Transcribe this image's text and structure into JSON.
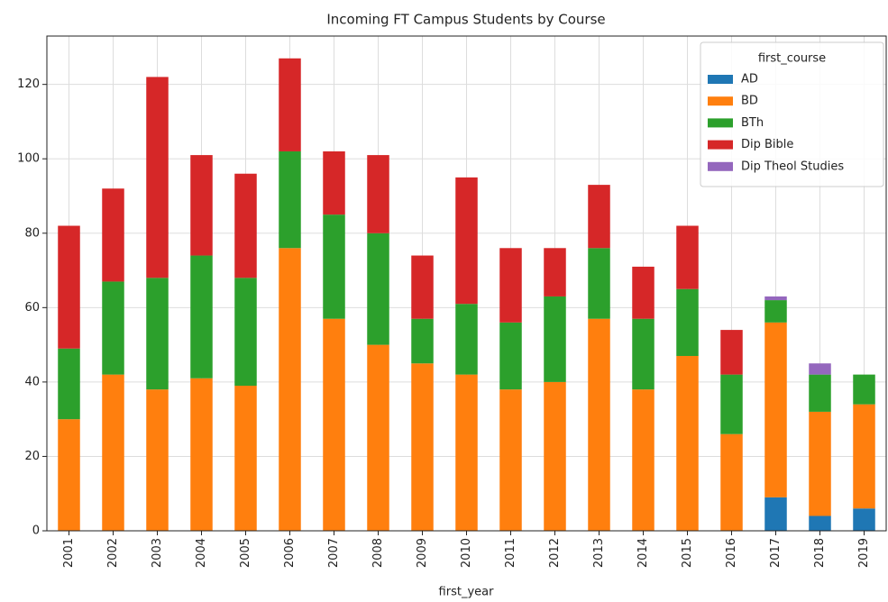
{
  "chart_data": {
    "type": "stacked_bar",
    "title": "Incoming FT Campus Students by Course",
    "x_label": "first_year",
    "legend_title": "first_course",
    "legend_position": "upper right",
    "grid": true,
    "categories": [
      "2001",
      "2002",
      "2003",
      "2004",
      "2005",
      "2006",
      "2007",
      "2008",
      "2009",
      "2010",
      "2011",
      "2012",
      "2013",
      "2014",
      "2015",
      "2016",
      "2017",
      "2018",
      "2019"
    ],
    "series": [
      {
        "name": "AD",
        "color": "#1f77b4",
        "values": [
          null,
          null,
          null,
          null,
          null,
          null,
          null,
          null,
          null,
          null,
          null,
          null,
          null,
          null,
          null,
          null,
          9,
          4,
          6
        ]
      },
      {
        "name": "BD",
        "color": "#ff7f0e",
        "values": [
          30,
          42,
          38,
          41,
          39,
          76,
          57,
          50,
          45,
          42,
          38,
          40,
          57,
          38,
          47,
          26,
          47,
          28,
          28
        ]
      },
      {
        "name": "BTh",
        "color": "#2ca02c",
        "values": [
          19,
          25,
          30,
          33,
          29,
          26,
          28,
          30,
          12,
          19,
          18,
          23,
          19,
          19,
          18,
          16,
          6,
          10,
          8
        ]
      },
      {
        "name": "Dip Bible",
        "color": "#d62728",
        "values": [
          33,
          25,
          54,
          27,
          28,
          25,
          17,
          21,
          17,
          34,
          20,
          13,
          17,
          14,
          17,
          12,
          null,
          null,
          null
        ]
      },
      {
        "name": "Dip Theol Studies",
        "color": "#9467bd",
        "values": [
          null,
          null,
          null,
          null,
          null,
          null,
          null,
          null,
          null,
          null,
          null,
          null,
          null,
          null,
          null,
          null,
          1,
          3,
          null
        ]
      }
    ],
    "ylim": [
      0,
      133
    ],
    "yticks": [
      0,
      20,
      40,
      60,
      80,
      100,
      120
    ]
  }
}
